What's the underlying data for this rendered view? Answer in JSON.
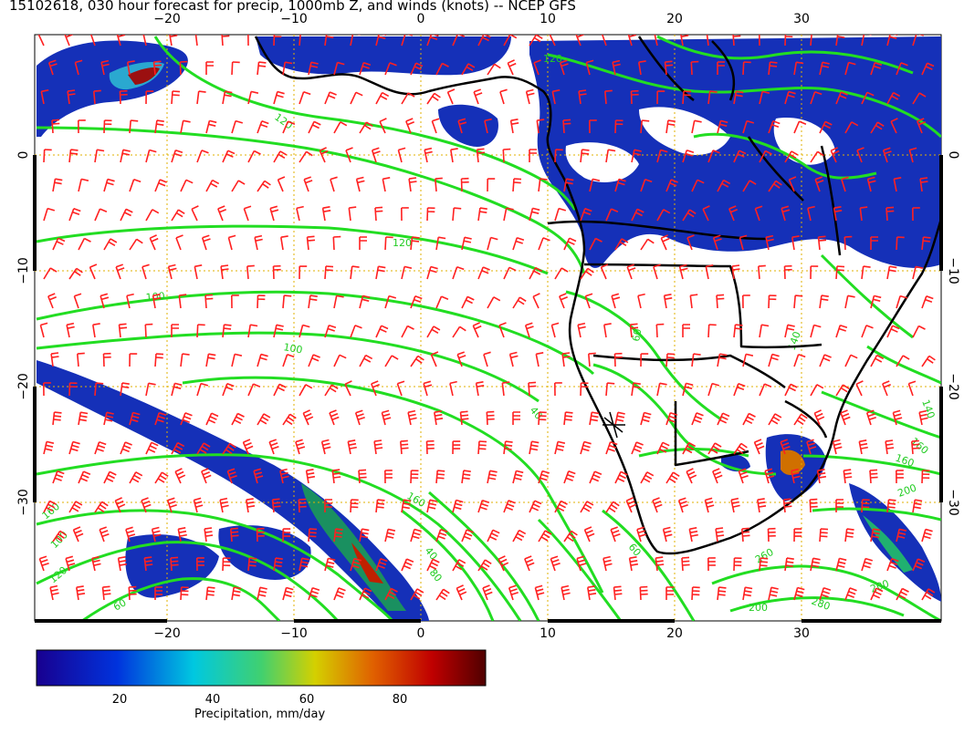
{
  "title": "15102618, 030 hour forecast for precip, 1000mb Z, and winds (knots) -- NCEP GFS",
  "x_axis": {
    "ticks": [
      -20,
      -10,
      0,
      10,
      20,
      30
    ],
    "labels": [
      "−20",
      "−10",
      "0",
      "10",
      "20",
      "30"
    ]
  },
  "y_axis": {
    "ticks": [
      0,
      -10,
      -20,
      -30
    ],
    "labels": [
      "0",
      "−10",
      "−20",
      "−30"
    ]
  },
  "colorbar": {
    "title": "Precipitation, mm/day",
    "ticks": [
      20,
      40,
      60,
      80
    ],
    "labels": [
      "20",
      "40",
      "60",
      "80"
    ],
    "range": [
      0,
      100
    ]
  },
  "contour_labels": [
    "120",
    "120",
    "120",
    "100",
    "160",
    "140",
    "140",
    "160",
    "200",
    "160",
    "160",
    "260",
    "280",
    "200",
    "200",
    "100",
    "120",
    "60",
    "60",
    "40",
    "40",
    "100",
    "60",
    "80"
  ],
  "colors": {
    "contour": "#22dd22",
    "barb": "#ff2020",
    "coast": "#000000",
    "grid": "#e0b000",
    "precip_light": "#1030b0",
    "precip_heavy": "#8b0000"
  }
}
